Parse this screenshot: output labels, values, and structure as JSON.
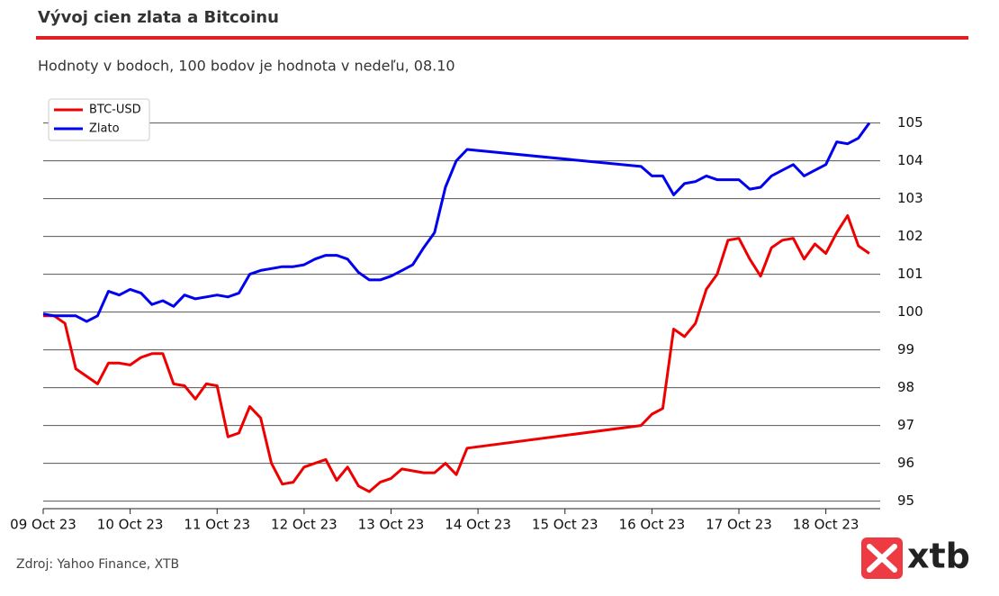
{
  "chart_data": {
    "type": "line",
    "title": "Vývoj cien zlata a Bitcoinu",
    "subtitle": "Hodnoty v bodoch, 100 bodov je hodnota v nedeľu, 08.10",
    "source": "Zdroj: Yahoo Finance, XTB",
    "logo": "xtb",
    "x": [
      "2023-10-09 00:00",
      "2023-10-09 03:00",
      "2023-10-09 06:00",
      "2023-10-09 09:00",
      "2023-10-09 12:00",
      "2023-10-09 15:00",
      "2023-10-09 18:00",
      "2023-10-09 21:00",
      "2023-10-10 00:00",
      "2023-10-10 03:00",
      "2023-10-10 06:00",
      "2023-10-10 09:00",
      "2023-10-10 12:00",
      "2023-10-10 15:00",
      "2023-10-10 18:00",
      "2023-10-10 21:00",
      "2023-10-11 00:00",
      "2023-10-11 03:00",
      "2023-10-11 06:00",
      "2023-10-11 09:00",
      "2023-10-11 12:00",
      "2023-10-11 15:00",
      "2023-10-11 18:00",
      "2023-10-11 21:00",
      "2023-10-12 00:00",
      "2023-10-12 03:00",
      "2023-10-12 06:00",
      "2023-10-12 09:00",
      "2023-10-12 12:00",
      "2023-10-12 15:00",
      "2023-10-12 18:00",
      "2023-10-12 21:00",
      "2023-10-13 00:00",
      "2023-10-13 03:00",
      "2023-10-13 06:00",
      "2023-10-13 09:00",
      "2023-10-13 12:00",
      "2023-10-13 15:00",
      "2023-10-13 18:00",
      "2023-10-13 21:00",
      "2023-10-15 21:00",
      "2023-10-16 00:00",
      "2023-10-16 03:00",
      "2023-10-16 06:00",
      "2023-10-16 09:00",
      "2023-10-16 12:00",
      "2023-10-16 15:00",
      "2023-10-16 18:00",
      "2023-10-16 21:00",
      "2023-10-17 00:00",
      "2023-10-17 03:00",
      "2023-10-17 06:00",
      "2023-10-17 09:00",
      "2023-10-17 12:00",
      "2023-10-17 15:00",
      "2023-10-17 18:00",
      "2023-10-17 21:00",
      "2023-10-18 00:00",
      "2023-10-18 03:00",
      "2023-10-18 06:00",
      "2023-10-18 09:00",
      "2023-10-18 12:00"
    ],
    "series": [
      {
        "name": "BTC-USD",
        "color": "#ee0000",
        "values": [
          99.9,
          99.9,
          99.7,
          98.5,
          98.3,
          98.1,
          98.65,
          98.65,
          98.6,
          98.8,
          98.9,
          98.9,
          98.1,
          98.05,
          97.7,
          98.1,
          98.05,
          96.7,
          96.8,
          97.5,
          97.2,
          96.0,
          95.45,
          95.5,
          95.9,
          96.0,
          96.1,
          95.55,
          95.9,
          95.4,
          95.25,
          95.5,
          95.6,
          95.85,
          95.8,
          95.75,
          95.75,
          96.0,
          95.7,
          96.4,
          97.0,
          97.3,
          97.45,
          99.55,
          99.35,
          99.7,
          100.6,
          101.0,
          101.9,
          101.95,
          101.4,
          100.95,
          101.7,
          101.9,
          101.95,
          101.4,
          101.8,
          101.55,
          102.1,
          102.55,
          101.75,
          101.55
        ]
      },
      {
        "name": "Zlato",
        "color": "#0000ee",
        "values": [
          99.95,
          99.9,
          99.9,
          99.9,
          99.75,
          99.9,
          100.55,
          100.45,
          100.6,
          100.5,
          100.2,
          100.3,
          100.15,
          100.45,
          100.35,
          100.4,
          100.45,
          100.4,
          100.5,
          101.0,
          101.1,
          101.15,
          101.2,
          101.2,
          101.25,
          101.4,
          101.5,
          101.5,
          101.4,
          101.05,
          100.85,
          100.85,
          100.95,
          101.1,
          101.25,
          101.7,
          102.1,
          103.3,
          104.0,
          104.3,
          103.85,
          103.6,
          103.6,
          103.1,
          103.4,
          103.45,
          103.6,
          103.5,
          103.5,
          103.5,
          103.25,
          103.3,
          103.6,
          103.75,
          103.9,
          103.6,
          103.75,
          103.9,
          104.5,
          104.45,
          104.6,
          105.0
        ]
      }
    ],
    "xlim": [
      "2023-10-09 00:00",
      "2023-10-18 15:00"
    ],
    "xticks": [
      {
        "value": "2023-10-09 00:00",
        "label": "09 Oct 23"
      },
      {
        "value": "2023-10-10 00:00",
        "label": "10 Oct 23"
      },
      {
        "value": "2023-10-11 00:00",
        "label": "11 Oct 23"
      },
      {
        "value": "2023-10-12 00:00",
        "label": "12 Oct 23"
      },
      {
        "value": "2023-10-13 00:00",
        "label": "13 Oct 23"
      },
      {
        "value": "2023-10-14 00:00",
        "label": "14 Oct 23"
      },
      {
        "value": "2023-10-15 00:00",
        "label": "15 Oct 23"
      },
      {
        "value": "2023-10-16 00:00",
        "label": "16 Oct 23"
      },
      {
        "value": "2023-10-17 00:00",
        "label": "17 Oct 23"
      },
      {
        "value": "2023-10-18 00:00",
        "label": "18 Oct 23"
      }
    ],
    "ylim": [
      94.8,
      105.3
    ],
    "yticks": [
      95,
      96,
      97,
      98,
      99,
      100,
      101,
      102,
      103,
      104,
      105
    ],
    "grid": true,
    "legend": "upper left"
  }
}
